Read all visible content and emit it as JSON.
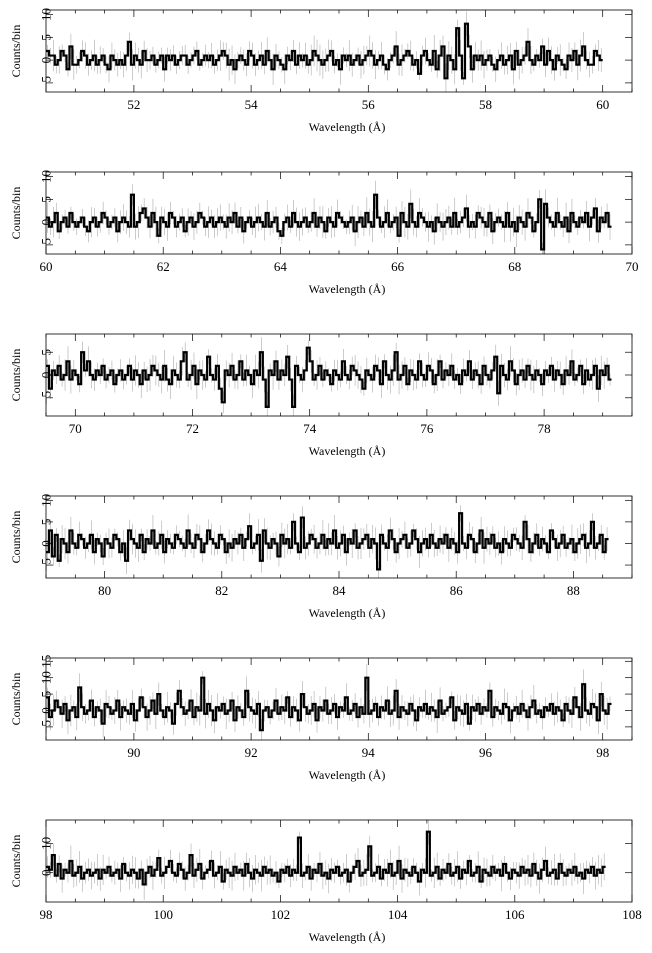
{
  "chart_data": [
    {
      "type": "line",
      "xlabel": "Wavelength (Å)",
      "ylabel": "Counts/bin",
      "xlim": [
        50.5,
        60.5
      ],
      "ylim": [
        -7,
        11
      ],
      "xticks": [
        52,
        54,
        56,
        58,
        60
      ],
      "xtick_labels": [
        "52",
        "54",
        "56",
        "58",
        "60"
      ],
      "yticks": [
        -5,
        0,
        5,
        10
      ],
      "ytick_labels": [
        "−5",
        "0",
        "5",
        "10"
      ],
      "bin_width": 0.05,
      "values": [
        2,
        1,
        1,
        -1,
        0,
        2,
        1,
        -2,
        3,
        -1,
        -1,
        0,
        2,
        1,
        -1,
        0,
        1,
        -1,
        0,
        1,
        -1,
        -2,
        1,
        0,
        -1,
        0,
        -1,
        1,
        4,
        -1,
        1,
        0,
        -1,
        2,
        0,
        0,
        1,
        -1,
        0,
        1,
        -2,
        1,
        0,
        1,
        -1,
        0,
        1,
        1,
        -1,
        0,
        1,
        2,
        -1,
        0,
        1,
        0,
        1,
        -1,
        0,
        1,
        2,
        1,
        -1,
        0,
        -2,
        0,
        1,
        0,
        -1,
        2,
        1,
        -1,
        0,
        1,
        -1,
        2,
        0,
        -2,
        1,
        0,
        -1,
        -2,
        1,
        0,
        2,
        -1,
        1,
        0,
        1,
        -1,
        0,
        2,
        1,
        0,
        -1,
        0,
        1,
        2,
        -1,
        0,
        -2,
        1,
        0,
        1,
        -1,
        0,
        1,
        -1,
        0,
        1,
        2,
        1,
        -1,
        0,
        1,
        -1,
        -2,
        0,
        1,
        3,
        -1,
        0,
        1,
        2,
        1,
        -1,
        0,
        -3,
        1,
        2,
        0,
        -1,
        2,
        -2,
        1,
        3,
        -4,
        1,
        0,
        -2,
        7,
        1,
        -4,
        8,
        3,
        -2,
        1,
        0,
        1,
        -1,
        0,
        1,
        -1,
        -2,
        0,
        1,
        -1,
        0,
        1,
        -2,
        2,
        -1,
        0,
        1,
        4,
        0,
        -1,
        1,
        0,
        3,
        -1,
        2,
        0,
        -2,
        1,
        0,
        -1,
        -2,
        1,
        0,
        2,
        -1,
        1,
        3,
        0,
        -1,
        -1,
        2,
        1,
        0
      ],
      "series": []
    },
    {
      "type": "line",
      "xlabel": "Wavelength (Å)",
      "ylabel": "Counts/bin",
      "xlim": [
        60,
        70
      ],
      "ylim": [
        -7,
        11
      ],
      "xticks": [
        60,
        62,
        64,
        66,
        68,
        70
      ],
      "xtick_labels": [
        "60",
        "62",
        "64",
        "66",
        "68",
        "70"
      ],
      "yticks": [
        -5,
        0,
        5,
        10
      ],
      "ytick_labels": [
        "−5",
        "0",
        "5",
        "10"
      ],
      "bin_width": 0.05,
      "values": [
        1,
        -1,
        0,
        2,
        -2,
        0,
        1,
        -1,
        2,
        0,
        -1,
        0,
        1,
        -1,
        -2,
        0,
        1,
        -1,
        0,
        2,
        1,
        -1,
        0,
        1,
        -2,
        0,
        1,
        0,
        -1,
        6,
        -1,
        0,
        2,
        3,
        1,
        -1,
        2,
        0,
        -3,
        1,
        0,
        -1,
        2,
        1,
        -1,
        0,
        1,
        -2,
        0,
        1,
        -1,
        0,
        2,
        1,
        -1,
        0,
        1,
        -1,
        0,
        1,
        0,
        -1,
        1,
        0,
        2,
        -1,
        1,
        -2,
        0,
        1,
        -1,
        0,
        1,
        0,
        -1,
        2,
        -1,
        0,
        1,
        -2,
        -3,
        0,
        1,
        -1,
        2,
        0,
        -1,
        0,
        1,
        -1,
        0,
        2,
        -1,
        1,
        0,
        -2,
        1,
        0,
        -1,
        2,
        1,
        0,
        -1,
        0,
        1,
        -2,
        0,
        1,
        -1,
        2,
        0,
        -1,
        6,
        1,
        -1,
        0,
        2,
        -1,
        0,
        1,
        -3,
        2,
        0,
        -1,
        4,
        0,
        -1,
        2,
        1,
        0,
        -1,
        0,
        -2,
        1,
        0,
        -1,
        0,
        1,
        -1,
        2,
        -1,
        0,
        1,
        3,
        -1,
        0,
        -1,
        2,
        1,
        0,
        -1,
        2,
        -2,
        0,
        1,
        0,
        -1,
        2,
        -1,
        0,
        -2,
        1,
        0,
        -1,
        2,
        1,
        -2,
        0,
        5,
        -6,
        4,
        1,
        0,
        -1,
        2,
        0,
        -1,
        1,
        -2,
        2,
        0,
        -1,
        1,
        0,
        2,
        -1,
        1,
        3,
        -2,
        1,
        0,
        2,
        -1
      ]
    },
    {
      "type": "line",
      "xlabel": "Wavelength (Å)",
      "ylabel": "Counts/bin",
      "xlim": [
        69.5,
        79.5
      ],
      "ylim": [
        -9,
        9
      ],
      "xticks": [
        70,
        72,
        74,
        76,
        78
      ],
      "xtick_labels": [
        "70",
        "72",
        "74",
        "76",
        "78"
      ],
      "yticks": [
        -5,
        0,
        5
      ],
      "ytick_labels": [
        "−5",
        "0",
        "5"
      ],
      "bin_width": 0.05,
      "values": [
        2,
        -3,
        1,
        0,
        2,
        -1,
        0,
        3,
        -1,
        1,
        0,
        -2,
        5,
        1,
        3,
        0,
        -1,
        1,
        0,
        2,
        -1,
        0,
        1,
        -2,
        0,
        1,
        -1,
        0,
        2,
        -1,
        1,
        0,
        -2,
        1,
        -1,
        0,
        2,
        1,
        0,
        -1,
        2,
        -1,
        -2,
        1,
        0,
        -1,
        3,
        5,
        -1,
        0,
        2,
        -2,
        1,
        0,
        -1,
        4,
        0,
        -1,
        2,
        -3,
        -6,
        1,
        0,
        2,
        -1,
        0,
        3,
        -1,
        1,
        0,
        -2,
        1,
        0,
        5,
        -1,
        -7,
        1,
        0,
        3,
        -1,
        1,
        0,
        4,
        -1,
        -7,
        2,
        0,
        -1,
        1,
        6,
        3,
        -1,
        0,
        2,
        -1,
        1,
        0,
        -2,
        1,
        0,
        -1,
        3,
        0,
        -1,
        2,
        1,
        0,
        -1,
        -3,
        1,
        0,
        -1,
        2,
        1,
        -2,
        3,
        0,
        -1,
        1,
        5,
        -1,
        0,
        2,
        -2,
        1,
        0,
        -1,
        3,
        0,
        -1,
        2,
        1,
        -2,
        0,
        3,
        -1,
        1,
        0,
        2,
        -1,
        0,
        -2,
        1,
        0,
        3,
        -1,
        1,
        0,
        -2,
        2,
        0,
        -1,
        1,
        4,
        -4,
        2,
        0,
        -1,
        3,
        1,
        -2,
        0,
        1,
        -1,
        2,
        0,
        -1,
        1,
        0,
        -2,
        1,
        0,
        2,
        -1,
        1,
        0,
        -2,
        1,
        0,
        3,
        -1,
        0,
        2,
        -2,
        1,
        -1,
        0,
        2,
        -3,
        1,
        0,
        2,
        -1
      ]
    },
    {
      "type": "line",
      "xlabel": "Wavelength (Å)",
      "ylabel": "Counts/bin",
      "xlim": [
        79,
        89
      ],
      "ylim": [
        -8,
        11
      ],
      "xticks": [
        80,
        82,
        84,
        86,
        88
      ],
      "xtick_labels": [
        "80",
        "82",
        "84",
        "86",
        "88"
      ],
      "yticks": [
        -5,
        0,
        5,
        10
      ],
      "ytick_labels": [
        "−5",
        "0",
        "5",
        "10"
      ],
      "bin_width": 0.05,
      "values": [
        -2,
        3,
        -3,
        2,
        -4,
        1,
        0,
        -2,
        3,
        0,
        -1,
        2,
        1,
        -1,
        0,
        2,
        -2,
        1,
        0,
        -3,
        1,
        0,
        -1,
        2,
        1,
        -2,
        0,
        -4,
        3,
        1,
        0,
        -1,
        2,
        -2,
        1,
        0,
        3,
        -1,
        0,
        2,
        -2,
        1,
        0,
        -1,
        2,
        1,
        0,
        -1,
        3,
        0,
        -1,
        2,
        1,
        -2,
        0,
        3,
        1,
        0,
        -1,
        2,
        1,
        -2,
        0,
        -1,
        1,
        0,
        2,
        -1,
        1,
        4,
        -1,
        0,
        2,
        -4,
        3,
        0,
        -1,
        1,
        0,
        -3,
        2,
        0,
        1,
        -1,
        5,
        0,
        -2,
        6,
        -1,
        0,
        2,
        1,
        -1,
        0,
        2,
        -1,
        1,
        0,
        3,
        -1,
        0,
        2,
        -2,
        1,
        0,
        3,
        -1,
        0,
        1,
        2,
        -1,
        1,
        0,
        -6,
        2,
        0,
        -1,
        3,
        1,
        -2,
        0,
        1,
        2,
        -1,
        0,
        3,
        1,
        -2,
        0,
        1,
        -1,
        2,
        0,
        -1,
        1,
        0,
        2,
        -1,
        1,
        0,
        -2,
        7,
        0,
        -1,
        2,
        1,
        -2,
        0,
        3,
        -1,
        1,
        0,
        2,
        -1,
        0,
        -2,
        1,
        0,
        -1,
        2,
        1,
        0,
        -1,
        5,
        1,
        -2,
        0,
        2,
        -1,
        1,
        0,
        -2,
        3,
        1,
        -1,
        0,
        2,
        -1,
        0,
        1,
        -2,
        0,
        1,
        2,
        -1,
        0,
        5,
        -1,
        0,
        2,
        -2,
        1
      ]
    },
    {
      "type": "line",
      "xlabel": "Wavelength (Å)",
      "ylabel": "Counts/bin",
      "xlim": [
        88.5,
        98.5
      ],
      "ylim": [
        -9,
        16
      ],
      "xticks": [
        90,
        92,
        94,
        96,
        98
      ],
      "xtick_labels": [
        "90",
        "92",
        "94",
        "96",
        "98"
      ],
      "yticks": [
        -5,
        0,
        5,
        10,
        15
      ],
      "ytick_labels": [
        "−5",
        "0",
        "5",
        "10",
        "15"
      ],
      "bin_width": 0.05,
      "values": [
        4,
        -2,
        0,
        3,
        1,
        -1,
        2,
        -3,
        0,
        1,
        -2,
        7,
        1,
        -1,
        0,
        3,
        -2,
        1,
        0,
        -4,
        2,
        1,
        -1,
        0,
        3,
        -2,
        1,
        0,
        -1,
        2,
        -3,
        0,
        4,
        1,
        -2,
        0,
        3,
        -1,
        5,
        0,
        -2,
        1,
        0,
        -4,
        2,
        6,
        1,
        -1,
        0,
        3,
        -2,
        1,
        0,
        10,
        -1,
        2,
        0,
        -3,
        1,
        0,
        2,
        -1,
        0,
        3,
        -3,
        1,
        0,
        -2,
        6,
        1,
        0,
        -1,
        2,
        -6,
        0,
        1,
        -2,
        0,
        3,
        -1,
        1,
        0,
        4,
        -2,
        1,
        0,
        -3,
        5,
        1,
        -1,
        0,
        2,
        -3,
        1,
        0,
        3,
        -1,
        0,
        2,
        -2,
        1,
        0,
        4,
        -1,
        0,
        2,
        -2,
        1,
        -1,
        10,
        -1,
        0,
        2,
        -2,
        1,
        0,
        3,
        -1,
        0,
        6,
        -2,
        1,
        0,
        -1,
        2,
        0,
        -3,
        1,
        0,
        2,
        -1,
        1,
        0,
        -2,
        3,
        -1,
        0,
        1,
        4,
        -3,
        1,
        0,
        -1,
        2,
        -4,
        1,
        0,
        2,
        -1,
        1,
        0,
        6,
        -2,
        1,
        0,
        -1,
        2,
        1,
        -3,
        0,
        1,
        -1,
        2,
        0,
        -2,
        1,
        3,
        -1,
        0,
        -2,
        1,
        0,
        2,
        -1,
        1,
        0,
        -3,
        2,
        0,
        -1,
        4,
        1,
        -2,
        8,
        0,
        -1,
        2,
        1,
        -3,
        5,
        0,
        -1,
        2
      ]
    },
    {
      "type": "line",
      "xlabel": "Wavelength (Å)",
      "ylabel": "Counts/bin",
      "xlim": [
        98,
        108
      ],
      "ylim": [
        -10,
        18
      ],
      "xticks": [
        98,
        100,
        102,
        104,
        106,
        108
      ],
      "xtick_labels": [
        "98",
        "100",
        "102",
        "104",
        "106",
        "108"
      ],
      "yticks": [
        0,
        10
      ],
      "ytick_labels": [
        "0",
        "10"
      ],
      "bin_width": 0.05,
      "values": [
        2,
        1,
        6,
        -1,
        3,
        -2,
        1,
        0,
        4,
        -1,
        0,
        2,
        -2,
        0,
        1,
        -1,
        0,
        1,
        -2,
        1,
        0,
        2,
        -1,
        0,
        1,
        -2,
        3,
        0,
        -1,
        1,
        0,
        -2,
        1,
        -4,
        0,
        2,
        -1,
        1,
        5,
        -1,
        0,
        2,
        4,
        0,
        -1,
        3,
        1,
        -2,
        0,
        6,
        -1,
        1,
        3,
        -2,
        0,
        1,
        4,
        -1,
        0,
        2,
        -3,
        1,
        0,
        -1,
        2,
        0,
        1,
        -1,
        3,
        0,
        -2,
        1,
        0,
        -1,
        2,
        0,
        1,
        -1,
        0,
        -3,
        1,
        0,
        2,
        -1,
        1,
        0,
        12,
        -1,
        0,
        2,
        -2,
        1,
        0,
        3,
        -1,
        0,
        -2,
        1,
        0,
        2,
        -1,
        0,
        1,
        -3,
        0,
        2,
        4,
        -1,
        0,
        1,
        9,
        -1,
        0,
        2,
        -2,
        1,
        0,
        3,
        -1,
        0,
        4,
        -2,
        1,
        0,
        -1,
        2,
        0,
        -3,
        1,
        0,
        14,
        -1,
        0,
        2,
        -2,
        1,
        0,
        3,
        -1,
        0,
        2,
        -2,
        1,
        0,
        4,
        -1,
        0,
        2,
        -3,
        1,
        0,
        -1,
        2,
        0,
        1,
        -1,
        3,
        0,
        -2,
        1,
        0,
        -1,
        2,
        0,
        1,
        -1,
        3,
        0,
        -2,
        1,
        4,
        -1,
        0,
        1,
        -2,
        3,
        0,
        -1,
        1,
        0,
        2,
        -1,
        0,
        -2,
        1,
        0,
        2,
        -1,
        1,
        0,
        2
      ]
    }
  ]
}
